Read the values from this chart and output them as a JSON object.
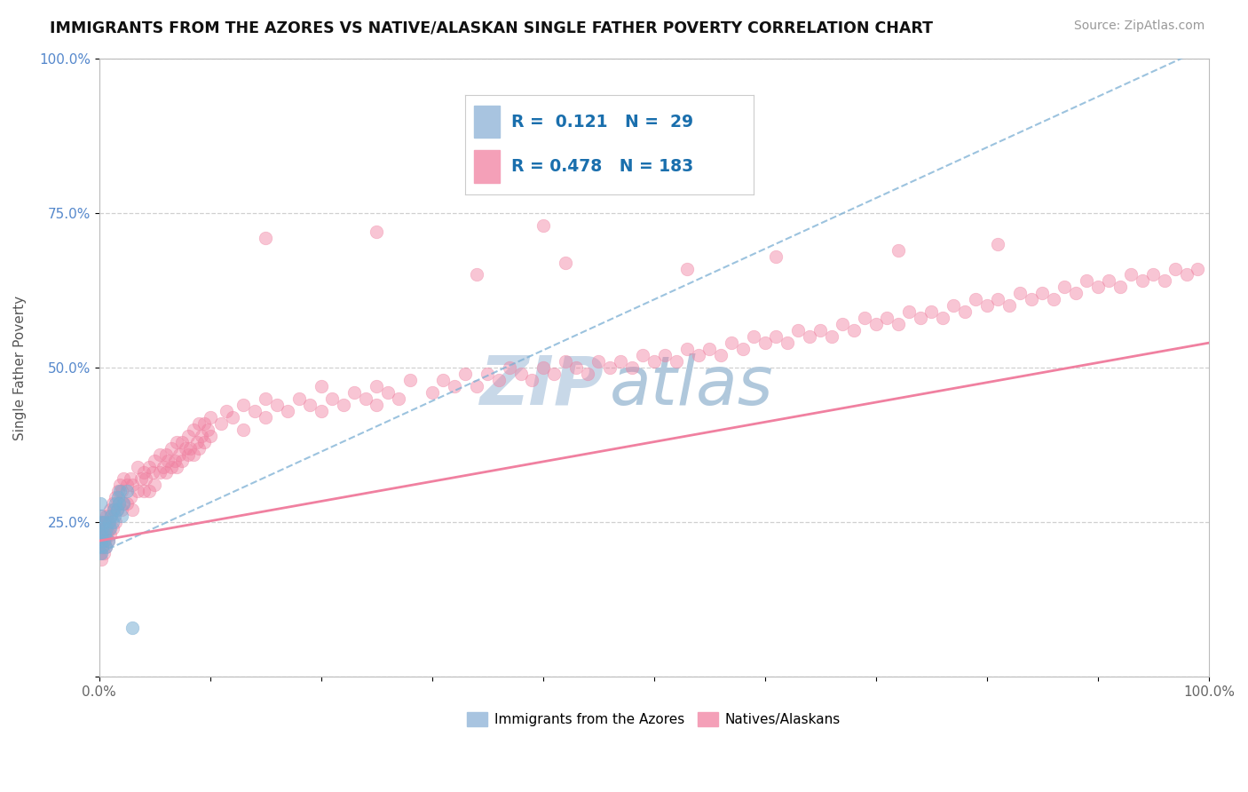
{
  "title": "IMMIGRANTS FROM THE AZORES VS NATIVE/ALASKAN SINGLE FATHER POVERTY CORRELATION CHART",
  "source": "Source: ZipAtlas.com",
  "ylabel": "Single Father Poverty",
  "blue_R": "0.121",
  "blue_N": "29",
  "pink_R": "0.478",
  "pink_N": "183",
  "blue_color": "#7bafd4",
  "pink_color": "#f080a0",
  "blue_legend_color": "#a8c4e0",
  "pink_legend_color": "#f4a0b8",
  "grid_color": "#d0d0d0",
  "title_fontsize": 12.5,
  "source_fontsize": 10,
  "watermark_zip_color": "#c8d8e8",
  "watermark_atlas_color": "#b0c8dc",
  "xlim": [
    0.0,
    1.0
  ],
  "ylim": [
    0.0,
    1.0
  ],
  "xticks": [
    0.0,
    0.1,
    0.2,
    0.3,
    0.4,
    0.5,
    0.6,
    0.7,
    0.8,
    0.9,
    1.0
  ],
  "xticklabels": [
    "0.0%",
    "",
    "",
    "",
    "",
    "",
    "",
    "",
    "",
    "",
    "100.0%"
  ],
  "yticks": [
    0.0,
    0.25,
    0.5,
    0.75,
    1.0
  ],
  "yticklabels": [
    "",
    "25.0%",
    "50.0%",
    "75.0%",
    "100.0%"
  ],
  "blue_scatter_x": [
    0.001,
    0.001,
    0.001,
    0.002,
    0.002,
    0.002,
    0.003,
    0.003,
    0.004,
    0.004,
    0.005,
    0.006,
    0.007,
    0.008,
    0.009,
    0.01,
    0.011,
    0.012,
    0.013,
    0.014,
    0.015,
    0.016,
    0.017,
    0.018,
    0.019,
    0.02,
    0.022,
    0.025,
    0.03
  ],
  "blue_scatter_y": [
    0.22,
    0.25,
    0.28,
    0.2,
    0.23,
    0.26,
    0.21,
    0.24,
    0.22,
    0.25,
    0.23,
    0.21,
    0.24,
    0.22,
    0.25,
    0.24,
    0.26,
    0.25,
    0.27,
    0.26,
    0.28,
    0.27,
    0.29,
    0.28,
    0.3,
    0.26,
    0.28,
    0.3,
    0.08
  ],
  "pink_scatter_x": [
    0.001,
    0.001,
    0.002,
    0.002,
    0.002,
    0.003,
    0.003,
    0.004,
    0.004,
    0.005,
    0.005,
    0.006,
    0.006,
    0.007,
    0.007,
    0.008,
    0.008,
    0.009,
    0.01,
    0.01,
    0.011,
    0.012,
    0.012,
    0.013,
    0.015,
    0.015,
    0.016,
    0.017,
    0.018,
    0.019,
    0.02,
    0.02,
    0.022,
    0.022,
    0.025,
    0.025,
    0.028,
    0.028,
    0.03,
    0.03,
    0.035,
    0.035,
    0.038,
    0.04,
    0.04,
    0.042,
    0.045,
    0.045,
    0.048,
    0.05,
    0.05,
    0.055,
    0.055,
    0.058,
    0.06,
    0.06,
    0.062,
    0.065,
    0.065,
    0.068,
    0.07,
    0.07,
    0.072,
    0.075,
    0.075,
    0.078,
    0.08,
    0.08,
    0.082,
    0.085,
    0.085,
    0.088,
    0.09,
    0.09,
    0.092,
    0.095,
    0.095,
    0.098,
    0.1,
    0.1,
    0.11,
    0.115,
    0.12,
    0.13,
    0.13,
    0.14,
    0.15,
    0.15,
    0.16,
    0.17,
    0.18,
    0.19,
    0.2,
    0.2,
    0.21,
    0.22,
    0.23,
    0.24,
    0.25,
    0.25,
    0.26,
    0.27,
    0.28,
    0.3,
    0.31,
    0.32,
    0.33,
    0.34,
    0.35,
    0.36,
    0.37,
    0.38,
    0.39,
    0.4,
    0.41,
    0.42,
    0.43,
    0.44,
    0.45,
    0.46,
    0.47,
    0.48,
    0.49,
    0.5,
    0.51,
    0.52,
    0.53,
    0.54,
    0.55,
    0.56,
    0.57,
    0.58,
    0.59,
    0.6,
    0.61,
    0.62,
    0.63,
    0.64,
    0.65,
    0.66,
    0.67,
    0.68,
    0.69,
    0.7,
    0.71,
    0.72,
    0.73,
    0.74,
    0.75,
    0.76,
    0.77,
    0.78,
    0.79,
    0.8,
    0.81,
    0.82,
    0.83,
    0.84,
    0.85,
    0.86,
    0.87,
    0.88,
    0.89,
    0.9,
    0.91,
    0.92,
    0.93,
    0.94,
    0.95,
    0.96,
    0.97,
    0.98,
    0.99,
    0.34,
    0.42,
    0.53,
    0.61,
    0.72,
    0.81,
    0.15,
    0.25,
    0.4,
    0.55
  ],
  "pink_scatter_y": [
    0.2,
    0.24,
    0.19,
    0.22,
    0.26,
    0.21,
    0.25,
    0.2,
    0.23,
    0.22,
    0.25,
    0.21,
    0.24,
    0.23,
    0.26,
    0.22,
    0.25,
    0.24,
    0.23,
    0.27,
    0.26,
    0.24,
    0.28,
    0.27,
    0.25,
    0.29,
    0.27,
    0.3,
    0.28,
    0.31,
    0.27,
    0.3,
    0.28,
    0.32,
    0.28,
    0.31,
    0.29,
    0.32,
    0.27,
    0.31,
    0.3,
    0.34,
    0.32,
    0.3,
    0.33,
    0.32,
    0.3,
    0.34,
    0.33,
    0.31,
    0.35,
    0.33,
    0.36,
    0.34,
    0.33,
    0.36,
    0.35,
    0.34,
    0.37,
    0.35,
    0.34,
    0.38,
    0.36,
    0.35,
    0.38,
    0.37,
    0.36,
    0.39,
    0.37,
    0.36,
    0.4,
    0.38,
    0.37,
    0.41,
    0.39,
    0.38,
    0.41,
    0.4,
    0.39,
    0.42,
    0.41,
    0.43,
    0.42,
    0.44,
    0.4,
    0.43,
    0.42,
    0.45,
    0.44,
    0.43,
    0.45,
    0.44,
    0.43,
    0.47,
    0.45,
    0.44,
    0.46,
    0.45,
    0.44,
    0.47,
    0.46,
    0.45,
    0.48,
    0.46,
    0.48,
    0.47,
    0.49,
    0.47,
    0.49,
    0.48,
    0.5,
    0.49,
    0.48,
    0.5,
    0.49,
    0.51,
    0.5,
    0.49,
    0.51,
    0.5,
    0.51,
    0.5,
    0.52,
    0.51,
    0.52,
    0.51,
    0.53,
    0.52,
    0.53,
    0.52,
    0.54,
    0.53,
    0.55,
    0.54,
    0.55,
    0.54,
    0.56,
    0.55,
    0.56,
    0.55,
    0.57,
    0.56,
    0.58,
    0.57,
    0.58,
    0.57,
    0.59,
    0.58,
    0.59,
    0.58,
    0.6,
    0.59,
    0.61,
    0.6,
    0.61,
    0.6,
    0.62,
    0.61,
    0.62,
    0.61,
    0.63,
    0.62,
    0.64,
    0.63,
    0.64,
    0.63,
    0.65,
    0.64,
    0.65,
    0.64,
    0.66,
    0.65,
    0.66,
    0.65,
    0.67,
    0.66,
    0.68,
    0.69,
    0.7,
    0.71,
    0.72,
    0.73,
    0.8
  ],
  "blue_line_x": [
    0.0,
    1.0
  ],
  "blue_line_y": [
    0.2,
    1.02
  ],
  "pink_line_x": [
    0.0,
    1.0
  ],
  "pink_line_y": [
    0.22,
    0.54
  ]
}
